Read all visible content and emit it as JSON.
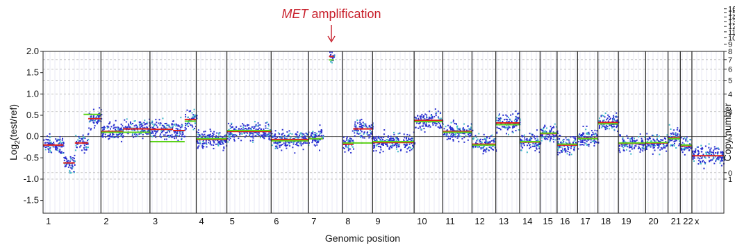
{
  "chart_data": {
    "type": "scatter",
    "annotation": {
      "italic": "MET",
      "rest": " amplification",
      "chrom": "7",
      "color": "#c8202c"
    },
    "xlabel": "Genomic position",
    "ylabel_main": "Log",
    "ylabel_sub": "2",
    "ylabel_rest": "(test/ref)",
    "ylabel_right": "Copy number",
    "ylim": [
      -1.8,
      2.0
    ],
    "yticks": [
      {
        "v": 2.0,
        "t": "2.0"
      },
      {
        "v": 1.5,
        "t": "1.5"
      },
      {
        "v": 1.0,
        "t": "1.0"
      },
      {
        "v": 0.5,
        "t": "0.5"
      },
      {
        "v": 0.0,
        "t": "0.0"
      },
      {
        "v": -0.5,
        "t": "-0.5"
      },
      {
        "v": -1.0,
        "t": "-1.0"
      },
      {
        "v": -1.5,
        "t": "-1.5"
      }
    ],
    "right_ticks": [
      "16",
      "15",
      "14",
      "13",
      "12",
      "11",
      "10",
      "9",
      "8",
      "7",
      "6",
      "5",
      "4",
      "3",
      "2",
      "1",
      "0"
    ],
    "chromosomes": [
      {
        "label": "1",
        "start": 0.0,
        "end": 0.085,
        "segments": [
          [
            0.0,
            0.35,
            -0.2
          ],
          [
            0.35,
            0.55,
            -0.62
          ],
          [
            0.55,
            0.78,
            -0.15
          ],
          [
            0.78,
            1.0,
            0.42
          ]
        ],
        "green": [
          [
            0.7,
            1.0,
            0.52
          ]
        ]
      },
      {
        "label": "2",
        "start": 0.085,
        "end": 0.157,
        "segments": [
          [
            0.0,
            0.45,
            0.12
          ],
          [
            0.45,
            1.0,
            0.18
          ]
        ],
        "green": [
          [
            0.0,
            1.0,
            0.1
          ]
        ]
      },
      {
        "label": "3",
        "start": 0.157,
        "end": 0.225,
        "segments": [
          [
            0.0,
            0.5,
            0.17
          ],
          [
            0.5,
            0.75,
            0.14
          ],
          [
            0.75,
            1.0,
            0.4
          ]
        ],
        "green": [
          [
            0.0,
            0.75,
            -0.12
          ],
          [
            0.75,
            1.0,
            0.36
          ]
        ]
      },
      {
        "label": "4",
        "start": 0.225,
        "end": 0.27,
        "segments": [
          [
            0.0,
            1.0,
            -0.07
          ]
        ],
        "green": [
          [
            0.0,
            1.0,
            -0.05
          ]
        ]
      },
      {
        "label": "5",
        "start": 0.27,
        "end": 0.335,
        "segments": [
          [
            0.0,
            1.0,
            0.12
          ]
        ],
        "green": [
          [
            0.0,
            1.0,
            0.14
          ]
        ]
      },
      {
        "label": "6",
        "start": 0.335,
        "end": 0.39,
        "segments": [
          [
            0.0,
            1.0,
            -0.07
          ]
        ],
        "green": [
          [
            0.0,
            1.0,
            -0.1
          ]
        ]
      },
      {
        "label": "7",
        "start": 0.39,
        "end": 0.44,
        "segments": [
          [
            0.0,
            0.42,
            -0.05
          ],
          [
            0.6,
            0.74,
            1.88
          ]
        ],
        "green": [
          [
            0.0,
            0.42,
            -0.05
          ],
          [
            0.6,
            0.74,
            1.8
          ]
        ]
      },
      {
        "label": "8",
        "start": 0.44,
        "end": 0.484,
        "segments": [
          [
            0.0,
            0.35,
            -0.18
          ],
          [
            0.35,
            1.0,
            0.18
          ]
        ],
        "green": [
          [
            0.0,
            1.0,
            -0.15
          ]
        ]
      },
      {
        "label": "9",
        "start": 0.484,
        "end": 0.545,
        "segments": [
          [
            0.0,
            1.0,
            -0.14
          ]
        ],
        "green": [
          [
            0.0,
            1.0,
            -0.12
          ]
        ]
      },
      {
        "label": "10",
        "start": 0.545,
        "end": 0.587,
        "segments": [
          [
            0.0,
            1.0,
            0.38
          ]
        ],
        "green": [
          [
            0.0,
            1.0,
            0.35
          ]
        ]
      },
      {
        "label": "11",
        "start": 0.587,
        "end": 0.63,
        "segments": [
          [
            0.0,
            1.0,
            0.12
          ]
        ],
        "green": [
          [
            0.0,
            1.0,
            0.1
          ]
        ]
      },
      {
        "label": "12",
        "start": 0.63,
        "end": 0.665,
        "segments": [
          [
            0.0,
            1.0,
            -0.18
          ]
        ],
        "green": [
          [
            0.0,
            1.0,
            -0.2
          ]
        ]
      },
      {
        "label": "13",
        "start": 0.665,
        "end": 0.7,
        "segments": [
          [
            0.0,
            1.0,
            0.32
          ]
        ],
        "green": [
          [
            0.0,
            1.0,
            0.28
          ]
        ]
      },
      {
        "label": "14",
        "start": 0.7,
        "end": 0.73,
        "segments": [
          [
            0.0,
            1.0,
            -0.13
          ]
        ],
        "green": [
          [
            0.0,
            1.0,
            -0.12
          ]
        ]
      },
      {
        "label": "15",
        "start": 0.73,
        "end": 0.755,
        "segments": [
          [
            0.0,
            1.0,
            0.07
          ]
        ],
        "green": [
          [
            0.0,
            1.0,
            0.08
          ]
        ]
      },
      {
        "label": "16",
        "start": 0.755,
        "end": 0.785,
        "segments": [
          [
            0.0,
            1.0,
            -0.2
          ]
        ],
        "green": [
          [
            0.0,
            1.0,
            -0.18
          ]
        ]
      },
      {
        "label": "17",
        "start": 0.785,
        "end": 0.815,
        "segments": [
          [
            0.0,
            1.0,
            -0.04
          ]
        ],
        "green": [
          [
            0.0,
            1.0,
            -0.05
          ]
        ]
      },
      {
        "label": "18",
        "start": 0.815,
        "end": 0.845,
        "segments": [
          [
            0.0,
            1.0,
            0.33
          ]
        ],
        "green": [
          [
            0.0,
            1.0,
            0.3
          ]
        ]
      },
      {
        "label": "19",
        "start": 0.845,
        "end": 0.885,
        "segments": [
          [
            0.0,
            1.0,
            -0.16
          ]
        ],
        "green": [
          [
            0.0,
            1.0,
            -0.15
          ]
        ]
      },
      {
        "label": "20",
        "start": 0.885,
        "end": 0.918,
        "segments": [
          [
            0.0,
            1.0,
            -0.15
          ]
        ],
        "green": [
          [
            0.0,
            1.0,
            -0.14
          ]
        ]
      },
      {
        "label": "21",
        "start": 0.918,
        "end": 0.936,
        "segments": [
          [
            0.0,
            1.0,
            -0.03
          ]
        ],
        "green": [
          [
            0.0,
            1.0,
            -0.05
          ]
        ]
      },
      {
        "label": "22",
        "start": 0.936,
        "end": 0.953,
        "segments": [
          [
            0.0,
            1.0,
            -0.22
          ]
        ],
        "green": [
          [
            0.0,
            1.0,
            -0.2
          ]
        ]
      },
      {
        "label": "x",
        "start": 0.953,
        "end": 1.0,
        "segments": [
          [
            0.0,
            1.0,
            -0.45
          ]
        ],
        "green": []
      }
    ]
  }
}
